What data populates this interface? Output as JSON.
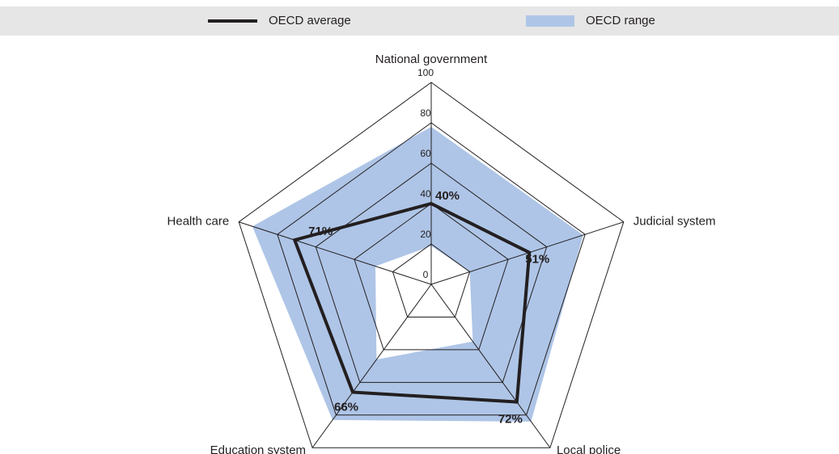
{
  "chart_data": {
    "type": "radar",
    "categories": [
      "National government",
      "Judicial system",
      "Local police",
      "Education system",
      "Health care"
    ],
    "rlim": [
      0,
      100
    ],
    "rticks": [
      0,
      20,
      40,
      60,
      80,
      100
    ],
    "grid": true,
    "series": [
      {
        "name": "OECD average",
        "color": "#231f20",
        "values": [
          40,
          51,
          72,
          66,
          71
        ],
        "value_labels": [
          "40%",
          "51%",
          "72%",
          "66%",
          "71%"
        ]
      },
      {
        "name": "OECD range",
        "color": "#aec5e7",
        "min": [
          19,
          20,
          35,
          46,
          29
        ],
        "max": [
          78,
          79,
          84,
          83,
          93
        ]
      }
    ]
  }
}
